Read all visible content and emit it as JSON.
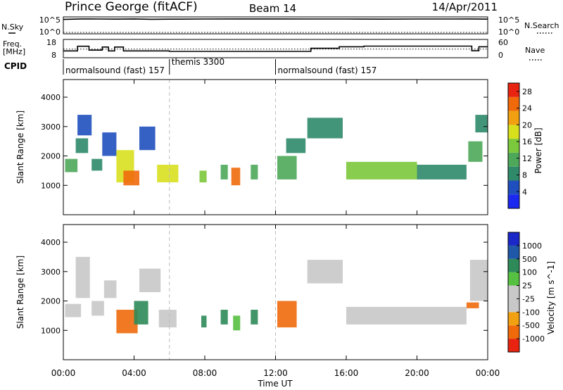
{
  "header": {
    "station": "Prince George (fitACF)",
    "beam": "Beam 14",
    "date": "14/Apr/2011"
  },
  "left_labels": {
    "nsky": "N.Sky",
    "freq_line1": "Freq.",
    "freq_line2": "[MHz]",
    "cpid": "CPID"
  },
  "right_labels": {
    "nsearch": "N.Search",
    "nave": "Nave"
  },
  "axis_ticks": {
    "nsky_top": "10^5",
    "nsky_bottom": "10^0",
    "nsearch_top": "10^5",
    "nsearch_bottom": "10^0",
    "freq_top": "18",
    "freq_bottom": "8",
    "nave_top": "60",
    "nave_bottom": "0"
  },
  "cpid_segments": [
    {
      "label": "normalsound (fast) 157",
      "start_hour": 0
    },
    {
      "label": "themis 3300",
      "start_hour": 6
    },
    {
      "label": "normalsound (fast) 157",
      "start_hour": 12
    }
  ],
  "x_axis": {
    "label": "Time UT",
    "ticks": [
      "00:00",
      "04:00",
      "08:00",
      "12:00",
      "16:00",
      "20:00",
      "00:00"
    ],
    "range_hours": [
      0,
      24
    ]
  },
  "colors": {
    "power": [
      "#1a28f0",
      "#1f4fbe",
      "#2f8a6a",
      "#4ea85a",
      "#7cc83c",
      "#d8e01e",
      "#f0a010",
      "#f06a0c",
      "#e82410"
    ],
    "velocity": [
      "#1a28c8",
      "#1f58a8",
      "#2e8a58",
      "#56c040",
      "#c8c8c8",
      "#c8c8c8",
      "#f0a010",
      "#f06a0c",
      "#e82410"
    ]
  },
  "chart_data": [
    {
      "type": "line",
      "title": "N.Sky / N.Search",
      "y_scale": "log",
      "ylim": [
        1,
        100000
      ],
      "x": [
        0,
        1,
        2,
        3,
        4,
        5,
        6,
        8,
        10,
        12,
        14,
        16,
        18,
        20,
        22,
        23,
        24
      ],
      "series": [
        {
          "name": "N.Sky",
          "values": [
            40000,
            60000,
            55000,
            50000,
            60000,
            45000,
            50000,
            55000,
            60000,
            60000,
            55000,
            55000,
            50000,
            55000,
            55000,
            60000,
            50000
          ]
        },
        {
          "name": "N.Search",
          "values": [
            1,
            1,
            1,
            1,
            1,
            1,
            1,
            1,
            1,
            1,
            1,
            1,
            1,
            1,
            1,
            1,
            1
          ]
        }
      ]
    },
    {
      "type": "line",
      "title": "Freq. / Nave",
      "x": [
        0,
        0.8,
        0.8,
        1.45,
        1.45,
        2.2,
        2.2,
        2.55,
        2.55,
        2.9,
        2.9,
        3.4,
        3.4,
        6,
        6,
        14,
        14,
        15.6,
        15.6,
        17,
        17,
        23.1,
        23.1,
        23.5,
        23.5,
        24
      ],
      "ylim": [
        8,
        18
      ],
      "series": [
        {
          "name": "Freq.",
          "values": [
            11.5,
            11.5,
            14.5,
            14.5,
            12,
            12,
            14,
            14,
            11.5,
            11.5,
            14,
            14,
            11.5,
            11.5,
            11.2,
            11.2,
            13.2,
            13.2,
            14.2,
            14.2,
            14.6,
            14.6,
            11.6,
            11.6,
            14.2,
            14.2
          ]
        },
        {
          "name": "Nave",
          "values": [
            28,
            28,
            28,
            28,
            28,
            28,
            28,
            28,
            28,
            28,
            28,
            28,
            28,
            28,
            28,
            28,
            28,
            28,
            28,
            28,
            28,
            28,
            28,
            28,
            28,
            28
          ]
        }
      ]
    },
    {
      "type": "heatmap",
      "title": "Power",
      "xlabel": "Time UT",
      "ylabel": "Slant Range [km]",
      "xlim": [
        0,
        24
      ],
      "ylim": [
        0,
        4600
      ],
      "y_ticks": [
        1000,
        2000,
        3000,
        4000
      ],
      "colorbar": {
        "label": "Power [dB]",
        "ticks": [
          4,
          8,
          12,
          16,
          20,
          24,
          28
        ],
        "range": [
          0,
          30
        ]
      },
      "regions": [
        {
          "x": [
            0.1,
            0.8
          ],
          "y": [
            1450,
            1900
          ],
          "value": 10
        },
        {
          "x": [
            0.7,
            1.4
          ],
          "y": [
            2100,
            2600
          ],
          "value": 8
        },
        {
          "x": [
            0.8,
            1.6
          ],
          "y": [
            2700,
            3400
          ],
          "value": 4
        },
        {
          "x": [
            1.6,
            2.2
          ],
          "y": [
            1500,
            1900
          ],
          "value": 8
        },
        {
          "x": [
            2.2,
            3.0
          ],
          "y": [
            2000,
            2800
          ],
          "value": 6
        },
        {
          "x": [
            3.0,
            4.0
          ],
          "y": [
            1100,
            2200
          ],
          "value": 18
        },
        {
          "x": [
            3.4,
            4.3
          ],
          "y": [
            1000,
            1500
          ],
          "value": 26
        },
        {
          "x": [
            4.3,
            5.2
          ],
          "y": [
            2200,
            3000
          ],
          "value": 6
        },
        {
          "x": [
            5.3,
            6.5
          ],
          "y": [
            1100,
            1700
          ],
          "value": 18
        },
        {
          "x": [
            7.7,
            8.1
          ],
          "y": [
            1100,
            1500
          ],
          "value": 14
        },
        {
          "x": [
            8.9,
            9.3
          ],
          "y": [
            1200,
            1700
          ],
          "value": 12
        },
        {
          "x": [
            9.5,
            10.0
          ],
          "y": [
            1000,
            1600
          ],
          "value": 26
        },
        {
          "x": [
            10.6,
            11.0
          ],
          "y": [
            1200,
            1700
          ],
          "value": 10
        },
        {
          "x": [
            12.1,
            13.2
          ],
          "y": [
            1200,
            2000
          ],
          "value": 10
        },
        {
          "x": [
            12.6,
            13.7
          ],
          "y": [
            2100,
            2600
          ],
          "value": 8
        },
        {
          "x": [
            13.8,
            15.8
          ],
          "y": [
            2600,
            3300
          ],
          "value": 8
        },
        {
          "x": [
            16.0,
            20.0
          ],
          "y": [
            1200,
            1800
          ],
          "value": 16
        },
        {
          "x": [
            20.0,
            22.8
          ],
          "y": [
            1200,
            1700
          ],
          "value": 8
        },
        {
          "x": [
            22.9,
            23.7
          ],
          "y": [
            1800,
            2500
          ],
          "value": 10
        },
        {
          "x": [
            23.3,
            24.0
          ],
          "y": [
            2800,
            3400
          ],
          "value": 8
        }
      ]
    },
    {
      "type": "heatmap",
      "title": "Velocity",
      "xlabel": "Time UT",
      "ylabel": "Slant Range [km]",
      "xlim": [
        0,
        24
      ],
      "ylim": [
        0,
        4600
      ],
      "y_ticks": [
        1000,
        2000,
        3000,
        4000
      ],
      "colorbar": {
        "label": "Velocity [m s^-1]",
        "ticks": [
          1000,
          500,
          100,
          25,
          -25,
          -100,
          -500,
          -1000
        ]
      },
      "regions": [
        {
          "x": [
            0.1,
            1.0
          ],
          "y": [
            1450,
            1900
          ],
          "value": 0
        },
        {
          "x": [
            0.7,
            1.5
          ],
          "y": [
            2100,
            3500
          ],
          "value": 0
        },
        {
          "x": [
            1.6,
            2.3
          ],
          "y": [
            1500,
            2000
          ],
          "value": 0
        },
        {
          "x": [
            2.3,
            3.0
          ],
          "y": [
            2100,
            2700
          ],
          "value": 0
        },
        {
          "x": [
            3.0,
            4.2
          ],
          "y": [
            900,
            1700
          ],
          "value": -300
        },
        {
          "x": [
            4.0,
            4.8
          ],
          "y": [
            1200,
            2000
          ],
          "value": 300
        },
        {
          "x": [
            4.3,
            5.5
          ],
          "y": [
            2300,
            3100
          ],
          "value": 0
        },
        {
          "x": [
            5.4,
            6.4
          ],
          "y": [
            1100,
            1700
          ],
          "value": 0
        },
        {
          "x": [
            7.8,
            8.1
          ],
          "y": [
            1100,
            1500
          ],
          "value": 150
        },
        {
          "x": [
            8.9,
            9.3
          ],
          "y": [
            1200,
            1700
          ],
          "value": 150
        },
        {
          "x": [
            9.6,
            10.0
          ],
          "y": [
            1000,
            1500
          ],
          "value": 80
        },
        {
          "x": [
            10.6,
            11.0
          ],
          "y": [
            1200,
            1700
          ],
          "value": 150
        },
        {
          "x": [
            12.1,
            13.2
          ],
          "y": [
            1100,
            2000
          ],
          "value": -400
        },
        {
          "x": [
            13.8,
            15.8
          ],
          "y": [
            2600,
            3400
          ],
          "value": 0
        },
        {
          "x": [
            16.0,
            22.8
          ],
          "y": [
            1200,
            1800
          ],
          "value": 0
        },
        {
          "x": [
            22.8,
            23.5
          ],
          "y": [
            1750,
            1950
          ],
          "value": -300
        },
        {
          "x": [
            23.0,
            24.0
          ],
          "y": [
            2000,
            3400
          ],
          "value": 0
        }
      ]
    }
  ]
}
